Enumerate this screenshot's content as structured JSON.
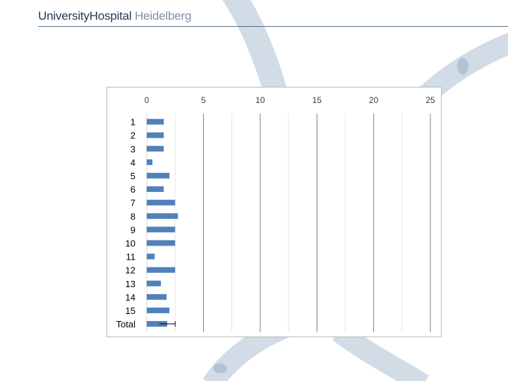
{
  "brand": {
    "primary": "UniversityHospital",
    "secondary": "Heidelberg",
    "primary_color": "#1f3b57",
    "secondary_color": "#7b93ab"
  },
  "colors": {
    "bar": "#4f81bd",
    "grid_major": "#7f7f7f",
    "grid_minor": "#e6e6e6",
    "panel_border": "#b9b9b9",
    "decor_band": "#c7d3df"
  },
  "chart_data": {
    "type": "bar",
    "orientation": "horizontal",
    "categories": [
      "1",
      "2",
      "3",
      "4",
      "5",
      "6",
      "7",
      "8",
      "9",
      "10",
      "11",
      "12",
      "13",
      "14",
      "15",
      "Total"
    ],
    "values": [
      1.5,
      1.5,
      1.5,
      0.5,
      2.0,
      1.5,
      2.5,
      2.75,
      2.5,
      2.5,
      0.7,
      2.5,
      1.25,
      1.75,
      2.0,
      1.8
    ],
    "error_bars": {
      "category": "Total",
      "low": 1.1,
      "high": 2.5
    },
    "xlim": [
      0,
      25
    ],
    "xticks": [
      0,
      5,
      10,
      15,
      20,
      25
    ],
    "x_axis_position": "top",
    "grid": true,
    "legend": "none",
    "title": "",
    "xlabel": "",
    "ylabel": ""
  }
}
